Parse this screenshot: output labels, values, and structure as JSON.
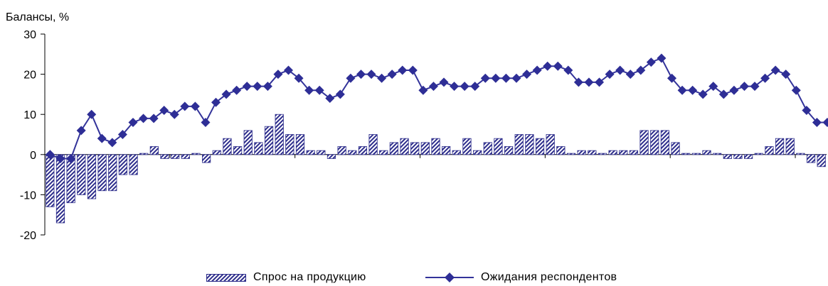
{
  "chart_data": {
    "type": "bar",
    "ylabel": "Балансы, %",
    "ylim": [
      -20,
      30
    ],
    "yticks": [
      30,
      20,
      10,
      0,
      -10,
      -20
    ],
    "ytick_labels": [
      "30",
      "20",
      "10",
      "0",
      "-10",
      "-20"
    ],
    "grid": false,
    "legend_position": "bottom",
    "colors": {
      "bar_stripe": "#2e2e8c",
      "line": "#33339a",
      "marker": "#2e2e96",
      "axis": "#000000"
    },
    "series": [
      {
        "name": "Спрос на продукцию",
        "type": "bar",
        "values": [
          -13,
          -17,
          -12,
          -10,
          -11,
          -9,
          -9,
          -5,
          -5,
          0.3,
          2,
          -1,
          -1,
          -1,
          0.3,
          -2,
          1,
          4,
          2,
          6,
          3,
          7,
          10,
          5,
          5,
          1,
          1,
          -1,
          2,
          1,
          2,
          5,
          1,
          3,
          4,
          3,
          3,
          4,
          2,
          1,
          4,
          1,
          3,
          4,
          2,
          5,
          5,
          4,
          5,
          2,
          0.3,
          1,
          1,
          0.3,
          1,
          1,
          1,
          6,
          6,
          6,
          3,
          0.3,
          0.3,
          1,
          0.3,
          -1,
          -1,
          -1,
          0.3,
          2,
          4,
          4,
          0.3,
          -2,
          -3
        ]
      },
      {
        "name": "Ожидания респондентов",
        "type": "line",
        "values": [
          null,
          null,
          0,
          -1,
          -1,
          6,
          10,
          4,
          3,
          5,
          8,
          9,
          9,
          11,
          10,
          12,
          12,
          8,
          13,
          15,
          16,
          17,
          17,
          17,
          20,
          21,
          19,
          16,
          16,
          14,
          15,
          19,
          20,
          20,
          19,
          20,
          21,
          21,
          16,
          17,
          18,
          17,
          17,
          17,
          19,
          19,
          19,
          19,
          20,
          21,
          22,
          22,
          21,
          18,
          18,
          18,
          20,
          21,
          20,
          21,
          23,
          24,
          19,
          16,
          16,
          15,
          17,
          15,
          16,
          17,
          17,
          19,
          21,
          20,
          16,
          11,
          8,
          8
        ]
      }
    ]
  }
}
